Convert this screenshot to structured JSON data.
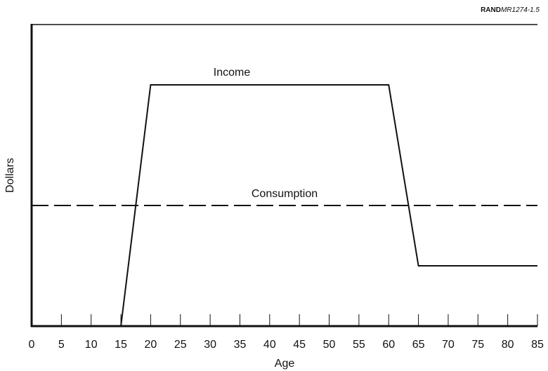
{
  "chart_data": {
    "type": "line",
    "source": {
      "org": "RAND",
      "id": "MR1274-1.5"
    },
    "xlabel": "Age",
    "ylabel": "Dollars",
    "xlim": [
      0,
      85
    ],
    "xticks": [
      0,
      5,
      10,
      15,
      20,
      25,
      30,
      35,
      40,
      45,
      50,
      55,
      60,
      65,
      70,
      75,
      80,
      85
    ],
    "ylim": [
      0,
      100
    ],
    "series": [
      {
        "name": "Income",
        "color": "#111111",
        "dashed": false,
        "x": [
          0,
          15,
          20,
          60,
          65,
          85
        ],
        "values": [
          0,
          0,
          80,
          80,
          20,
          20
        ]
      },
      {
        "name": "Consumption",
        "color": "#111111",
        "dashed": true,
        "x": [
          0,
          85
        ],
        "values": [
          40,
          40
        ]
      }
    ]
  }
}
